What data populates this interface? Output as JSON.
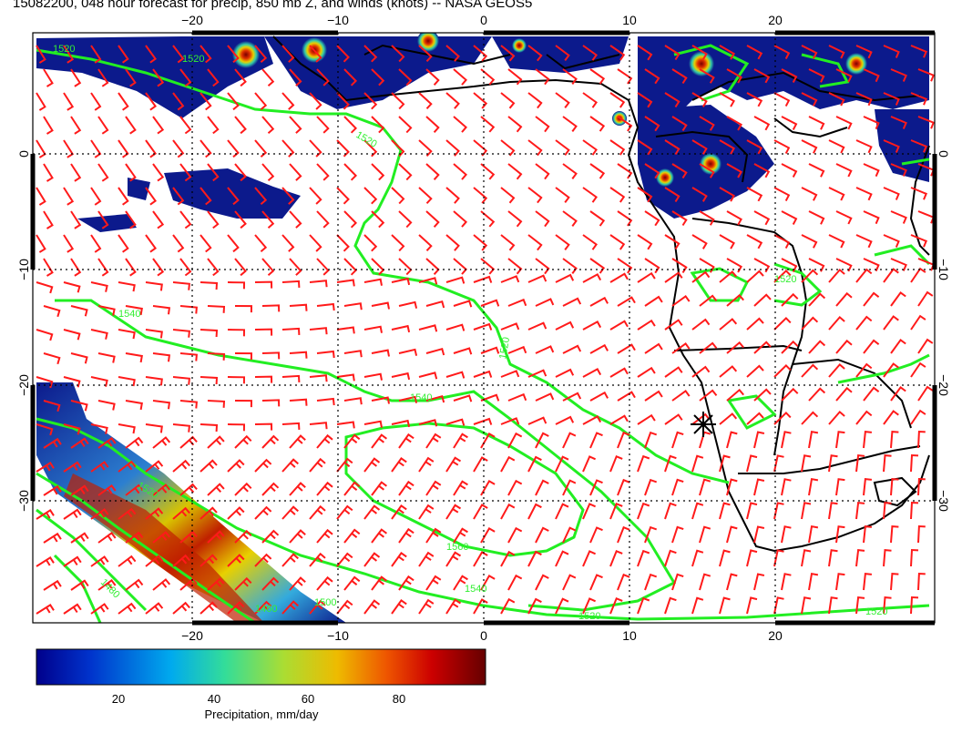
{
  "title": "15082200, 048 hour forecast for precip, 850 mb Z, and winds (knots) -- NASA GEOS5",
  "colors": {
    "wind": "#ff1a1a",
    "contour": "#22ee22",
    "coast": "#000000",
    "grid": "#000000",
    "precip_low": "#0c1a8c"
  },
  "map": {
    "lon_ticks_top": [
      "−20",
      "−10",
      "0",
      "10",
      "20"
    ],
    "lon_ticks_bottom": [
      "−20",
      "−10",
      "0",
      "10",
      "20"
    ],
    "lat_ticks_left": [
      "0",
      "−10",
      "−20",
      "−30"
    ],
    "lat_ticks_right": [
      "0",
      "−10",
      "−20",
      "−30"
    ],
    "contour_labels": [
      "1520",
      "1520",
      "1520",
      "1540",
      "1520",
      "1540",
      "1520",
      "1560",
      "1540",
      "1520",
      "1500",
      "1480",
      "1460",
      "1520",
      "1520"
    ],
    "marker_icon": "asterisk-marker-icon"
  },
  "colorbar": {
    "labels": [
      "20",
      "40",
      "60",
      "80"
    ],
    "title": "Precipitation, mm/day",
    "range": [
      0,
      100
    ],
    "stops": [
      "#00008b",
      "#0033cc",
      "#00aaee",
      "#33dd99",
      "#aadd33",
      "#eebb00",
      "#ee5500",
      "#cc0000",
      "#660000"
    ]
  }
}
